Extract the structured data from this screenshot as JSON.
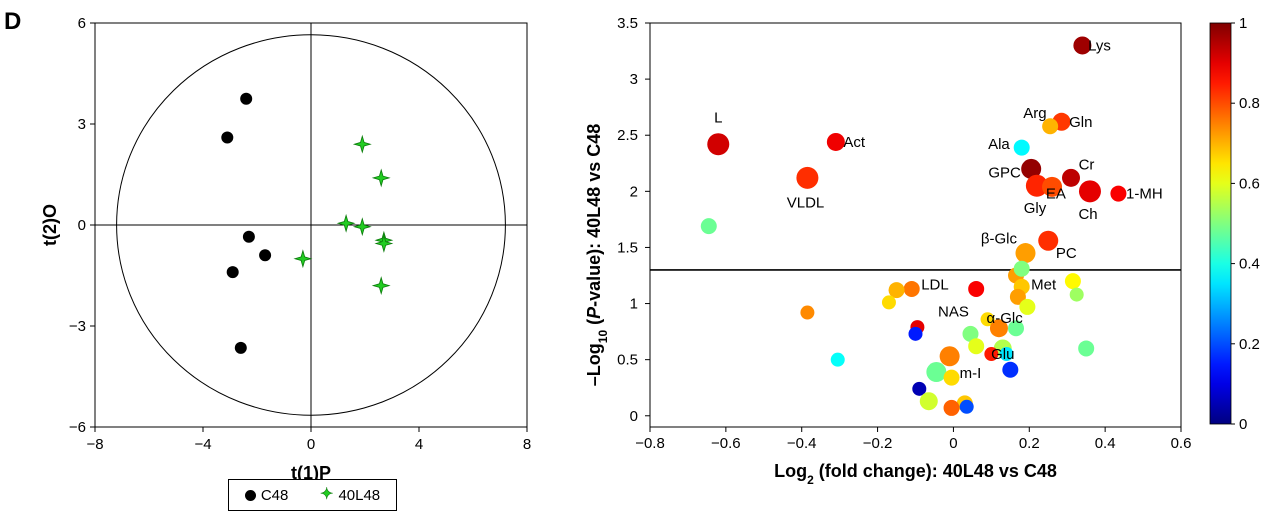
{
  "panel_label": "D",
  "legend": {
    "items": [
      {
        "label": "C48",
        "marker": "circle",
        "color": "#000000"
      },
      {
        "label": "40L48",
        "marker": "star",
        "color": "#22cc22"
      }
    ]
  },
  "chart_data": [
    {
      "type": "scatter",
      "title": "",
      "xlabel": "t(1)P",
      "ylabel": "t(2)O",
      "xlim": [
        -8,
        8
      ],
      "ylim": [
        -6,
        6
      ],
      "xticks": [
        -8,
        -4,
        0,
        4,
        8
      ],
      "yticks": [
        -6,
        -3,
        0,
        3,
        6
      ],
      "ytick_labels": [
        "−6",
        "−3",
        "0",
        "3",
        "6"
      ],
      "xtick_labels": [
        "−8",
        "−4",
        "0",
        "4",
        "8"
      ],
      "confidence_ellipse": {
        "rx": 7.2,
        "ry": 5.65
      },
      "series": [
        {
          "name": "C48",
          "marker": "circle",
          "color": "#000000",
          "points": [
            [
              -2.4,
              3.75
            ],
            [
              -3.1,
              2.6
            ],
            [
              -2.3,
              -0.35
            ],
            [
              -1.7,
              -0.9
            ],
            [
              -2.9,
              -1.4
            ],
            [
              -2.6,
              -3.65
            ]
          ]
        },
        {
          "name": "40L48",
          "marker": "star",
          "color": "#22cc22",
          "points": [
            [
              1.9,
              2.4
            ],
            [
              2.6,
              1.4
            ],
            [
              1.3,
              0.05
            ],
            [
              1.9,
              -0.05
            ],
            [
              2.7,
              -0.45
            ],
            [
              2.7,
              -0.55
            ],
            [
              -0.3,
              -1.0
            ],
            [
              2.6,
              -1.8
            ]
          ]
        }
      ]
    },
    {
      "type": "scatter",
      "title": "",
      "xlabel_main": "Log",
      "xlabel_sub": "2",
      "xlabel_rest": " (fold change): 40L48 vs C48",
      "ylabel_pre": "–Log",
      "ylabel_sub": "10",
      "ylabel_mid": " (",
      "ylabel_italic": "P",
      "ylabel_post": "-value): 40L48 vs C48",
      "xlim": [
        -0.8,
        0.6
      ],
      "ylim": [
        -0.1,
        3.5
      ],
      "xticks": [
        -0.8,
        -0.6,
        -0.4,
        -0.2,
        0,
        0.2,
        0.4,
        0.6
      ],
      "xtick_labels": [
        "−0.8",
        "−0.6",
        "−0.4",
        "−0.2",
        "0",
        "0.2",
        "0.4",
        "0.6"
      ],
      "yticks": [
        0,
        0.5,
        1,
        1.5,
        2,
        2.5,
        3,
        3.5
      ],
      "ytick_labels": [
        "0",
        "0.5",
        "1",
        "1.5",
        "2",
        "2.5",
        "3",
        "3.5"
      ],
      "threshold_line": 1.3,
      "colorbar": {
        "min": 0,
        "max": 1,
        "ticks": [
          0,
          0.2,
          0.4,
          0.6,
          0.8,
          1
        ],
        "tick_labels": [
          "0",
          "0.2",
          "0.4",
          "0.6",
          "0.8",
          "1"
        ],
        "colormap": "jet"
      },
      "points": [
        {
          "x": 0.34,
          "y": 3.3,
          "c": 0.97,
          "s": 9,
          "label": "Lys",
          "lx": 0.355,
          "ly": 3.3,
          "anchor": "start"
        },
        {
          "x": -0.62,
          "y": 2.42,
          "c": 0.92,
          "s": 11,
          "label": "L",
          "lx": -0.62,
          "ly": 2.66,
          "anchor": "middle"
        },
        {
          "x": -0.31,
          "y": 2.44,
          "c": 0.89,
          "s": 9,
          "label": "Act",
          "lx": -0.29,
          "ly": 2.44,
          "anchor": "start"
        },
        {
          "x": -0.385,
          "y": 2.12,
          "c": 0.83,
          "s": 11,
          "label": "VLDL",
          "lx": -0.39,
          "ly": 1.9,
          "anchor": "middle"
        },
        {
          "x": 0.285,
          "y": 2.62,
          "c": 0.82,
          "s": 9,
          "label": "Gln",
          "lx": 0.305,
          "ly": 2.62,
          "anchor": "start"
        },
        {
          "x": 0.255,
          "y": 2.58,
          "c": 0.7,
          "s": 8,
          "label": "Arg",
          "lx": 0.215,
          "ly": 2.7,
          "anchor": "middle"
        },
        {
          "x": 0.18,
          "y": 2.39,
          "c": 0.37,
          "s": 8,
          "label": "Ala",
          "lx": 0.12,
          "ly": 2.42,
          "anchor": "middle"
        },
        {
          "x": 0.205,
          "y": 2.2,
          "c": 0.98,
          "s": 10,
          "label": "GPC",
          "lx": 0.135,
          "ly": 2.17,
          "anchor": "middle"
        },
        {
          "x": 0.31,
          "y": 2.12,
          "c": 0.94,
          "s": 9,
          "label": "Cr",
          "lx": 0.33,
          "ly": 2.24,
          "anchor": "start"
        },
        {
          "x": 0.22,
          "y": 2.05,
          "c": 0.84,
          "s": 11,
          "label": "Gly",
          "lx": 0.215,
          "ly": 1.85,
          "anchor": "middle"
        },
        {
          "x": 0.26,
          "y": 2.04,
          "c": 0.8,
          "s": 10,
          "label": "EA",
          "lx": 0.27,
          "ly": 1.98,
          "anchor": "middle"
        },
        {
          "x": 0.36,
          "y": 2.0,
          "c": 0.9,
          "s": 11,
          "label": "Ch",
          "lx": 0.355,
          "ly": 1.8,
          "anchor": "middle"
        },
        {
          "x": 0.435,
          "y": 1.98,
          "c": 0.88,
          "s": 8,
          "label": "1-MH",
          "lx": 0.455,
          "ly": 1.98,
          "anchor": "start"
        },
        {
          "x": -0.645,
          "y": 1.69,
          "c": 0.48,
          "s": 8
        },
        {
          "x": 0.19,
          "y": 1.45,
          "c": 0.72,
          "s": 10,
          "label": "β-Glc",
          "lx": 0.12,
          "ly": 1.58,
          "anchor": "middle"
        },
        {
          "x": 0.25,
          "y": 1.56,
          "c": 0.83,
          "s": 10,
          "label": "PC",
          "lx": 0.27,
          "ly": 1.45,
          "anchor": "start"
        },
        {
          "x": -0.11,
          "y": 1.13,
          "c": 0.76,
          "s": 8,
          "label": "LDL",
          "lx": -0.085,
          "ly": 1.17,
          "anchor": "start"
        },
        {
          "x": -0.15,
          "y": 1.12,
          "c": 0.7,
          "s": 8
        },
        {
          "x": -0.17,
          "y": 1.01,
          "c": 0.66,
          "s": 7
        },
        {
          "x": 0.06,
          "y": 1.13,
          "c": 0.88,
          "s": 8,
          "label": "NAS",
          "lx": 0.0,
          "ly": 0.93,
          "anchor": "middle"
        },
        {
          "x": 0.165,
          "y": 1.25,
          "c": 0.72,
          "s": 8
        },
        {
          "x": 0.18,
          "y": 1.31,
          "c": 0.5,
          "s": 8
        },
        {
          "x": 0.18,
          "y": 1.15,
          "c": 0.68,
          "s": 8,
          "label": "Met",
          "lx": 0.205,
          "ly": 1.17,
          "anchor": "start"
        },
        {
          "x": 0.17,
          "y": 1.06,
          "c": 0.72,
          "s": 8
        },
        {
          "x": 0.195,
          "y": 0.97,
          "c": 0.6,
          "s": 8
        },
        {
          "x": 0.315,
          "y": 1.2,
          "c": 0.63,
          "s": 8
        },
        {
          "x": 0.325,
          "y": 1.08,
          "c": 0.53,
          "s": 7
        },
        {
          "x": -0.385,
          "y": 0.92,
          "c": 0.74,
          "s": 7
        },
        {
          "x": -0.095,
          "y": 0.79,
          "c": 0.9,
          "s": 7
        },
        {
          "x": -0.1,
          "y": 0.73,
          "c": 0.15,
          "s": 7
        },
        {
          "x": 0.09,
          "y": 0.86,
          "c": 0.66,
          "s": 7
        },
        {
          "x": 0.12,
          "y": 0.78,
          "c": 0.75,
          "s": 9,
          "label": "α-Glc",
          "lx": 0.135,
          "ly": 0.87,
          "anchor": "middle"
        },
        {
          "x": 0.165,
          "y": 0.78,
          "c": 0.48,
          "s": 8
        },
        {
          "x": 0.045,
          "y": 0.73,
          "c": 0.5,
          "s": 8
        },
        {
          "x": 0.06,
          "y": 0.62,
          "c": 0.6,
          "s": 8
        },
        {
          "x": 0.13,
          "y": 0.6,
          "c": 0.55,
          "s": 9,
          "label": "Glu",
          "lx": 0.13,
          "ly": 0.55,
          "anchor": "middle"
        },
        {
          "x": 0.1,
          "y": 0.55,
          "c": 0.85,
          "s": 7
        },
        {
          "x": 0.14,
          "y": 0.55,
          "c": 0.35,
          "s": 7
        },
        {
          "x": -0.01,
          "y": 0.53,
          "c": 0.75,
          "s": 10,
          "label": "m-I",
          "lx": 0.045,
          "ly": 0.38,
          "anchor": "middle"
        },
        {
          "x": 0.35,
          "y": 0.6,
          "c": 0.48,
          "s": 8
        },
        {
          "x": -0.305,
          "y": 0.5,
          "c": 0.38,
          "s": 7
        },
        {
          "x": 0.15,
          "y": 0.41,
          "c": 0.17,
          "s": 8
        },
        {
          "x": -0.045,
          "y": 0.39,
          "c": 0.48,
          "s": 10
        },
        {
          "x": -0.005,
          "y": 0.34,
          "c": 0.66,
          "s": 8
        },
        {
          "x": -0.09,
          "y": 0.24,
          "c": 0.05,
          "s": 7
        },
        {
          "x": -0.065,
          "y": 0.13,
          "c": 0.58,
          "s": 9
        },
        {
          "x": 0.03,
          "y": 0.11,
          "c": 0.68,
          "s": 8
        },
        {
          "x": -0.005,
          "y": 0.07,
          "c": 0.78,
          "s": 8
        },
        {
          "x": 0.035,
          "y": 0.08,
          "c": 0.2,
          "s": 7
        }
      ]
    }
  ]
}
